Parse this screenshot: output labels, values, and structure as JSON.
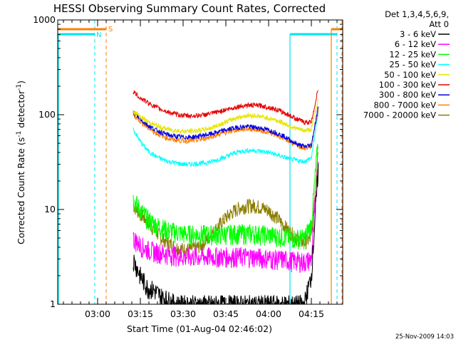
{
  "chart_data": {
    "type": "line",
    "title": "HESSI Observing Summary Count Rates, Corrected",
    "xlabel": "Start Time (01-Aug-04 02:46:02)",
    "ylabel": "Corrected Count Rate (s",
    "ylabel_sup1": "-1",
    "ylabel_mid": " detector",
    "ylabel_sup2": "-1",
    "ylabel_end": ")",
    "y_scale": "log",
    "ylim": [
      1,
      1000
    ],
    "xlim_minutes": [
      166,
      1286
    ],
    "x_ticks": [
      {
        "label": "03:00",
        "min": 180
      },
      {
        "label": "03:15",
        "min": 195
      },
      {
        "label": "03:30",
        "min": 210
      },
      {
        "label": "03:45",
        "min": 225
      },
      {
        "label": "04:00",
        "min": 240
      },
      {
        "label": "04:15",
        "min": 255
      }
    ],
    "y_ticks": [
      {
        "label": "1",
        "value": 1
      },
      {
        "label": "10",
        "value": 10
      },
      {
        "label": "100",
        "value": 100
      },
      {
        "label": "1000",
        "value": 1000
      }
    ],
    "legend_header": [
      "Det 1,3,4,5,6,9,",
      "Att 0"
    ],
    "legend_position": "right",
    "markers": {
      "night_label": "N",
      "saa_label": "S",
      "night_color": "#00e5ee",
      "saa_color": "#ff7f00"
    },
    "footer_date": "25-Nov-2009 14:03",
    "series": [
      {
        "name": "3 - 6 keV",
        "color": "#000000",
        "x": [
          192.5,
          195,
          197.5,
          200,
          202.5,
          205,
          207.5,
          210,
          212.5,
          215,
          217.5,
          220,
          222.5,
          225,
          227.5,
          230,
          232.5,
          235,
          237.5,
          240,
          242.5,
          245,
          247.5,
          250,
          252.5,
          255,
          257.5
        ],
        "y": [
          3,
          2,
          1.5,
          1.4,
          1.2,
          1.1,
          1,
          1,
          1,
          1,
          1,
          1,
          1,
          1,
          1,
          1,
          1,
          1,
          1,
          1,
          1,
          1,
          1,
          1,
          1,
          2,
          30
        ]
      },
      {
        "name": "6 - 12 keV",
        "color": "#ff00ff",
        "x": [
          192.5,
          195,
          197.5,
          200,
          202.5,
          205,
          207.5,
          210,
          212.5,
          215,
          217.5,
          220,
          222.5,
          225,
          227.5,
          230,
          232.5,
          235,
          237.5,
          240,
          242.5,
          245,
          247.5,
          250,
          252.5,
          255,
          257.5
        ],
        "y": [
          5,
          4.2,
          3.8,
          3.6,
          3.5,
          3.4,
          3.3,
          3.2,
          3.2,
          3.2,
          3.2,
          3.2,
          3.2,
          3.2,
          3.2,
          3.2,
          3.2,
          3.2,
          3.1,
          3.1,
          3,
          3,
          2.9,
          2.9,
          2.8,
          3,
          35
        ]
      },
      {
        "name": "12 - 25 keV",
        "color": "#00ff00",
        "x": [
          192.5,
          195,
          197.5,
          200,
          202.5,
          205,
          207.5,
          210,
          212.5,
          215,
          217.5,
          220,
          222.5,
          225,
          227.5,
          230,
          232.5,
          235,
          237.5,
          240,
          242.5,
          245,
          247.5,
          250,
          252.5,
          255,
          257.5
        ],
        "y": [
          13,
          10,
          8,
          7,
          6.5,
          6,
          5.8,
          5.6,
          5.5,
          5.5,
          5.5,
          5.5,
          5.5,
          5.5,
          5.6,
          5.6,
          5.6,
          5.6,
          5.5,
          5.4,
          5.3,
          5.2,
          5.1,
          5,
          5,
          7,
          60
        ]
      },
      {
        "name": "25 - 50 keV",
        "color": "#00ffff",
        "x": [
          192.5,
          195,
          197.5,
          200,
          202.5,
          205,
          207.5,
          210,
          212.5,
          215,
          217.5,
          220,
          222.5,
          225,
          227.5,
          230,
          232.5,
          235,
          237.5,
          240,
          242.5,
          245,
          247.5,
          250,
          252.5,
          255,
          257.5
        ],
        "y": [
          70,
          52,
          42,
          37,
          34,
          32,
          31,
          30,
          30,
          30.5,
          31,
          32,
          34,
          36,
          39,
          41,
          42,
          42,
          41,
          40,
          38,
          36,
          34,
          33,
          32,
          35,
          110
        ]
      },
      {
        "name": "50 - 100 keV",
        "color": "#e5e500",
        "x": [
          192.5,
          195,
          197.5,
          200,
          202.5,
          205,
          207.5,
          210,
          212.5,
          215,
          217.5,
          220,
          222.5,
          225,
          227.5,
          230,
          232.5,
          235,
          237.5,
          240,
          242.5,
          245,
          247.5,
          250,
          252.5,
          255,
          257.5
        ],
        "y": [
          110,
          95,
          85,
          78,
          73,
          70,
          68,
          67,
          67,
          68,
          70,
          73,
          78,
          84,
          90,
          95,
          98,
          98,
          95,
          92,
          88,
          82,
          76,
          71,
          68,
          70,
          150
        ]
      },
      {
        "name": "100 - 300 keV",
        "color": "#e50000",
        "x": [
          192.5,
          195,
          197.5,
          200,
          202.5,
          205,
          207.5,
          210,
          212.5,
          215,
          217.5,
          220,
          222.5,
          225,
          227.5,
          230,
          232.5,
          235,
          237.5,
          240,
          242.5,
          245,
          247.5,
          250,
          252.5,
          255,
          257.5
        ],
        "y": [
          175,
          150,
          135,
          122,
          113,
          106,
          101,
          98,
          97,
          98,
          100,
          103,
          108,
          113,
          118,
          123,
          126,
          126,
          124,
          120,
          114,
          106,
          98,
          90,
          83,
          84,
          195
        ]
      },
      {
        "name": "300 - 800 keV",
        "color": "#0000e5",
        "x": [
          192.5,
          195,
          197.5,
          200,
          202.5,
          205,
          207.5,
          210,
          212.5,
          215,
          217.5,
          220,
          222.5,
          225,
          227.5,
          230,
          232.5,
          235,
          237.5,
          240,
          242.5,
          245,
          247.5,
          250,
          252.5,
          255,
          257.5
        ],
        "y": [
          105,
          90,
          78,
          70,
          65,
          61,
          59,
          58,
          58,
          59,
          61,
          63,
          66,
          69,
          72,
          74,
          75,
          74,
          72,
          69,
          65,
          60,
          54,
          49,
          46,
          48,
          125
        ]
      },
      {
        "name": "800 - 7000 keV",
        "color": "#ff7f00",
        "x": [
          192.5,
          195,
          197.5,
          200,
          202.5,
          205,
          207.5,
          210,
          212.5,
          215,
          217.5,
          220,
          222.5,
          225,
          227.5,
          230,
          232.5,
          235,
          237.5,
          240,
          242.5,
          245,
          247.5,
          250,
          252.5,
          255,
          257.5
        ],
        "y": [
          100,
          85,
          73,
          65,
          60,
          56,
          54,
          53,
          53,
          54,
          56,
          59,
          62,
          65,
          68,
          70,
          71,
          70,
          68,
          65,
          61,
          57,
          52,
          47,
          44,
          46,
          120
        ]
      },
      {
        "name": "7000 - 20000 keV",
        "color": "#8b7d00",
        "x": [
          192.5,
          195,
          197.5,
          200,
          202.5,
          205,
          207.5,
          210,
          212.5,
          215,
          217.5,
          220,
          222.5,
          225,
          227.5,
          230,
          232.5,
          235,
          237.5,
          240,
          242.5,
          245,
          247.5,
          250,
          252.5,
          255,
          257.5
        ],
        "y": [
          11,
          9,
          7.5,
          6,
          5,
          4.4,
          4,
          3.8,
          3.8,
          4,
          4.5,
          5.5,
          6.8,
          8.2,
          9.5,
          10.5,
          11,
          11,
          10.5,
          9.8,
          8.5,
          7,
          5.8,
          5,
          4.5,
          5,
          50
        ]
      }
    ]
  }
}
